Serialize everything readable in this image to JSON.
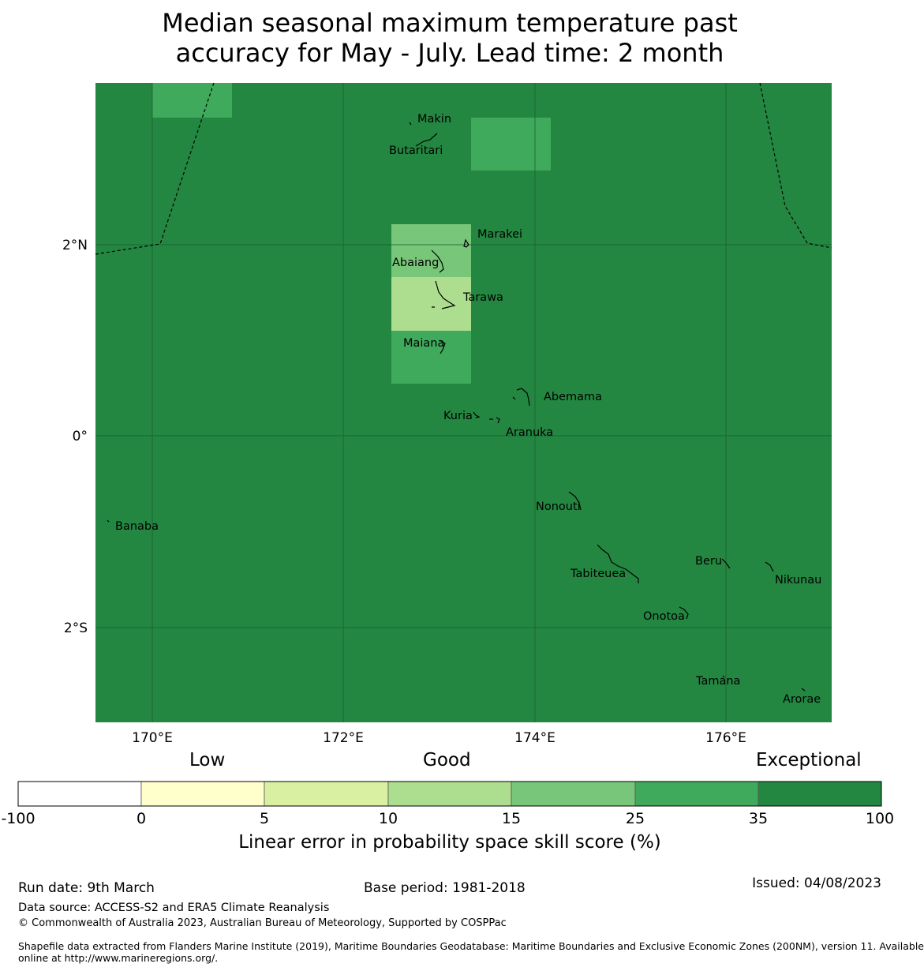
{
  "title_line1": "Median seasonal maximum temperature past",
  "title_line2": "accuracy for May - July. Lead time: 2 month",
  "map": {
    "lat_ticks": [
      "2°N",
      "0°",
      "2°S"
    ],
    "lon_ticks": [
      "170°E",
      "172°E",
      "174°E",
      "176°E"
    ],
    "place_labels": [
      "Makin",
      "Butaritari",
      "Marakei",
      "Abaiang",
      "Tarawa",
      "Maiana",
      "Abemama",
      "Kuria",
      "Aranuka",
      "Banaba",
      "Nonouti",
      "Beru",
      "Tabiteuea",
      "Nikunau",
      "Onotoa",
      "Tamana",
      "Arorae"
    ],
    "colors": {
      "background": "#248741",
      "band_35_100": "#248741",
      "band_25_35": "#40aa5c",
      "band_15_25": "#78c679",
      "band_10_15": "#addd8e"
    }
  },
  "legend": {
    "categories": [
      "Low",
      "Good",
      "Exceptional"
    ],
    "ticks": [
      "-100",
      "0",
      "5",
      "10",
      "15",
      "25",
      "35",
      "100"
    ],
    "colors": [
      "#ffffff",
      "#ffffcc",
      "#d9f0a3",
      "#addd8e",
      "#78c679",
      "#40aa5c",
      "#248741"
    ],
    "label": "Linear error in probability space skill score (%)"
  },
  "footer": {
    "run_date": "Run date: 9th March",
    "base_period": "Base period: 1981-2018",
    "issued": "Issued: 04/08/2023",
    "data_source": "Data source: ACCESS-S2 and ERA5 Climate Reanalysis",
    "copyright": "© Commonwealth of Australia 2023, Australian Bureau of Meteorology, Supported by COSPPac",
    "shapefile_line1": "Shapefile data extracted from Flanders Marine Institute (2019), Maritime Boundaries Geodatabase: Maritime Boundaries and Exclusive Economic Zones (200NM), version 11. Available",
    "shapefile_line2": "online at http://www.marineregions.org/."
  }
}
